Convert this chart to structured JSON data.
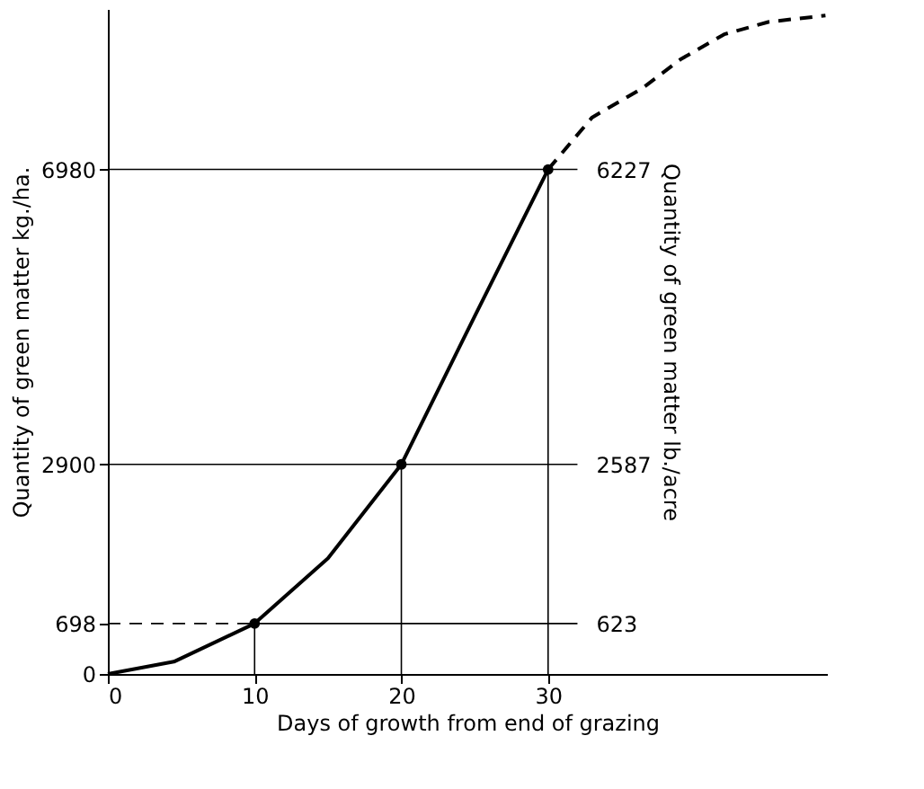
{
  "chart_data": {
    "type": "line",
    "xlabel": "Days of growth from end of grazing",
    "ylabel": "Quantity of green matter kg./ha.",
    "y2label": "Quantity of green matter lb./acre",
    "series": [
      {
        "type": "line",
        "color": "#000000",
        "line_style": "solid",
        "x": [
          0,
          4.5,
          10,
          15,
          20,
          25,
          30
        ],
        "values": [
          0,
          170,
          698,
          1600,
          2900,
          4950,
          6980
        ]
      },
      {
        "type": "line",
        "color": "#000000",
        "line_style": "dashed",
        "x": [
          30,
          33,
          36.4,
          39,
          42,
          45,
          48.9
        ],
        "values": [
          6980,
          7700,
          8100,
          8500,
          8850,
          9020,
          9110
        ]
      },
      {
        "type": "scatter",
        "color": "#000000",
        "marker": "circle",
        "x": [
          10,
          20,
          30
        ],
        "values": [
          698,
          2900,
          6980
        ]
      },
      {
        "type": "line",
        "color": "#000000",
        "line_style": "dashed",
        "x": [
          0,
          10
        ],
        "values": [
          698,
          698
        ]
      },
      {
        "type": "line",
        "color": "#000000",
        "line_style": "solid",
        "x": [
          10,
          32
        ],
        "values": [
          698,
          698
        ]
      },
      {
        "type": "line",
        "color": "#000000",
        "line_style": "solid",
        "x": [
          0,
          32
        ],
        "values": [
          2900,
          2900
        ]
      },
      {
        "type": "line",
        "color": "#000000",
        "line_style": "solid",
        "x": [
          0,
          32
        ],
        "values": [
          6980,
          6980
        ]
      },
      {
        "type": "line",
        "color": "#000000",
        "line_style": "solid",
        "x": [
          10,
          10
        ],
        "values": [
          0,
          698
        ]
      },
      {
        "type": "line",
        "color": "#000000",
        "line_style": "solid",
        "x": [
          20,
          20
        ],
        "values": [
          0,
          2900
        ]
      },
      {
        "type": "line",
        "color": "#000000",
        "line_style": "solid",
        "x": [
          30,
          30
        ],
        "values": [
          0,
          6980
        ]
      }
    ],
    "xlim": [
      0,
      49
    ],
    "xticks": [
      0,
      10,
      20,
      30
    ],
    "ylim": [
      0,
      9200
    ],
    "yticks": [
      0,
      698,
      2900,
      6980
    ],
    "y2lim": [
      0,
      8207
    ],
    "y2ticks": [
      623,
      2587,
      6227
    ],
    "grid": false
  }
}
